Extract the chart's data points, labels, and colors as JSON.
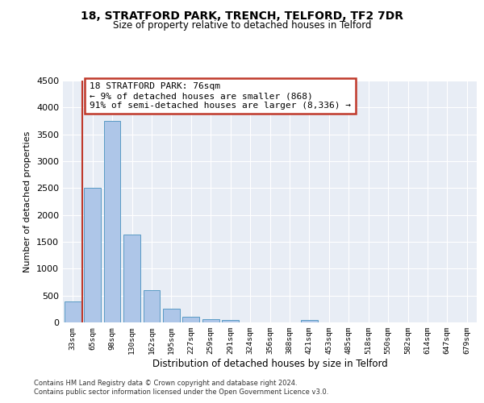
{
  "title1": "18, STRATFORD PARK, TRENCH, TELFORD, TF2 7DR",
  "title2": "Size of property relative to detached houses in Telford",
  "xlabel": "Distribution of detached houses by size in Telford",
  "ylabel": "Number of detached properties",
  "footnote1": "Contains HM Land Registry data © Crown copyright and database right 2024.",
  "footnote2": "Contains public sector information licensed under the Open Government Licence v3.0.",
  "categories": [
    "33sqm",
    "65sqm",
    "98sqm",
    "130sqm",
    "162sqm",
    "195sqm",
    "227sqm",
    "259sqm",
    "291sqm",
    "324sqm",
    "356sqm",
    "388sqm",
    "421sqm",
    "453sqm",
    "485sqm",
    "518sqm",
    "550sqm",
    "582sqm",
    "614sqm",
    "647sqm",
    "679sqm"
  ],
  "values": [
    390,
    2500,
    3750,
    1630,
    600,
    250,
    105,
    60,
    40,
    0,
    0,
    0,
    50,
    0,
    0,
    0,
    0,
    0,
    0,
    0,
    0
  ],
  "bar_color": "#aec6e8",
  "bar_edge_color": "#5a9bc5",
  "vline_color": "#c0392b",
  "vline_x": 0.5,
  "annotation_text": "18 STRATFORD PARK: 76sqm\n← 9% of detached houses are smaller (868)\n91% of semi-detached houses are larger (8,336) →",
  "ylim": [
    0,
    4500
  ],
  "yticks": [
    0,
    500,
    1000,
    1500,
    2000,
    2500,
    3000,
    3500,
    4000,
    4500
  ],
  "background_color": "#e8edf5",
  "grid_color": "#ffffff",
  "white": "#ffffff",
  "red_border": "#c0392b"
}
